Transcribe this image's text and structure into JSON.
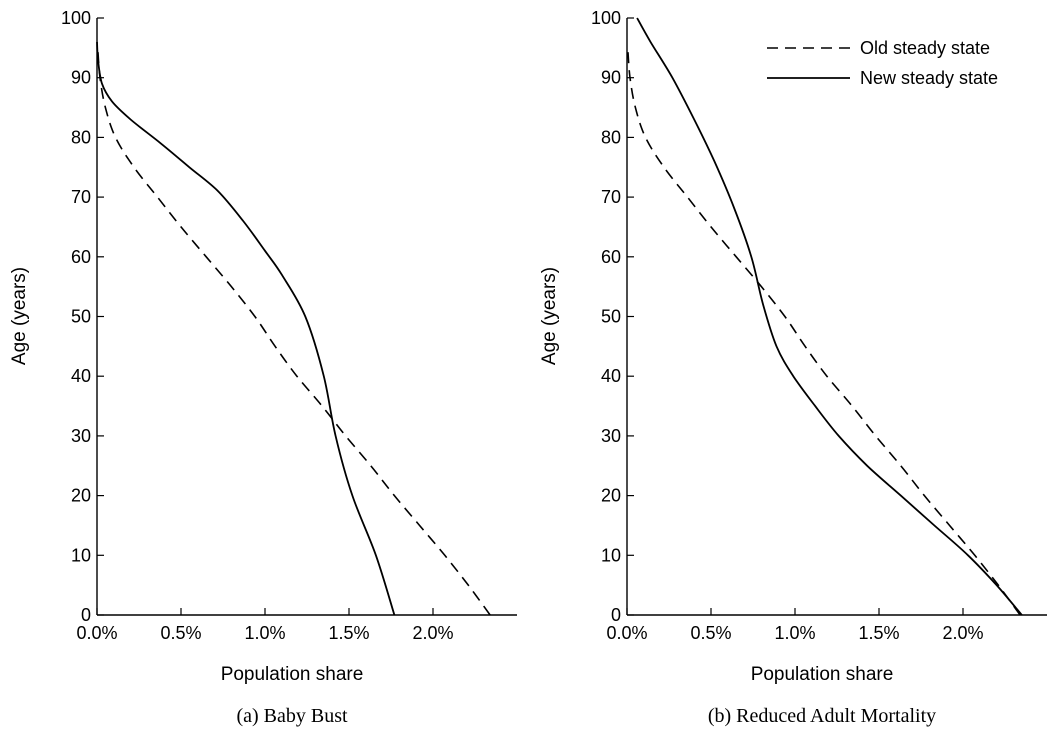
{
  "chart_data": [
    {
      "type": "line",
      "caption": "(a) Baby Bust",
      "xlabel": "Population share",
      "ylabel": "Age (years)",
      "xlim": [
        0,
        2.5
      ],
      "ylim": [
        0,
        100
      ],
      "xticks": [
        0,
        0.5,
        1.0,
        1.5,
        2.0
      ],
      "xtick_labels": [
        "0.0%",
        "0.5%",
        "1.0%",
        "1.5%",
        "2.0%"
      ],
      "yticks": [
        0,
        10,
        20,
        30,
        40,
        50,
        60,
        70,
        80,
        90,
        100
      ],
      "ytick_labels": [
        "0",
        "10",
        "20",
        "30",
        "40",
        "50",
        "60",
        "70",
        "80",
        "90",
        "100"
      ],
      "grid": false,
      "legend": false,
      "series": [
        {
          "name": "Old steady state",
          "style": "dashed",
          "points": [
            [
              2.34,
              0
            ],
            [
              2.21,
              5
            ],
            [
              2.07,
              10
            ],
            [
              1.92,
              15
            ],
            [
              1.77,
              20
            ],
            [
              1.63,
              25
            ],
            [
              1.48,
              30
            ],
            [
              1.34,
              35
            ],
            [
              1.19,
              40
            ],
            [
              1.06,
              45
            ],
            [
              0.94,
              50
            ],
            [
              0.8,
              55
            ],
            [
              0.65,
              60
            ],
            [
              0.5,
              65
            ],
            [
              0.36,
              70
            ],
            [
              0.22,
              75
            ],
            [
              0.11,
              80
            ],
            [
              0.05,
              85
            ],
            [
              0.018,
              90
            ],
            [
              0.004,
              95
            ]
          ]
        },
        {
          "name": "New steady state",
          "style": "solid",
          "points": [
            [
              1.77,
              0
            ],
            [
              1.66,
              10
            ],
            [
              1.52,
              20
            ],
            [
              1.42,
              30
            ],
            [
              1.35,
              40
            ],
            [
              1.24,
              50
            ],
            [
              1.1,
              57
            ],
            [
              1.0,
              61
            ],
            [
              0.87,
              66
            ],
            [
              0.72,
              71
            ],
            [
              0.55,
              75
            ],
            [
              0.38,
              79
            ],
            [
              0.2,
              83
            ],
            [
              0.09,
              86
            ],
            [
              0.03,
              89
            ],
            [
              0.006,
              93
            ],
            [
              0.0,
              96
            ]
          ]
        }
      ]
    },
    {
      "type": "line",
      "caption": "(b) Reduced Adult Mortality",
      "xlabel": "Population share",
      "ylabel": "Age (years)",
      "xlim": [
        0,
        2.5
      ],
      "ylim": [
        0,
        100
      ],
      "xticks": [
        0,
        0.5,
        1.0,
        1.5,
        2.0
      ],
      "xtick_labels": [
        "0.0%",
        "0.5%",
        "1.0%",
        "1.5%",
        "2.0%"
      ],
      "yticks": [
        0,
        10,
        20,
        30,
        40,
        50,
        60,
        70,
        80,
        90,
        100
      ],
      "ytick_labels": [
        "0",
        "10",
        "20",
        "30",
        "40",
        "50",
        "60",
        "70",
        "80",
        "90",
        "100"
      ],
      "grid": false,
      "legend": "top-right",
      "series": [
        {
          "name": "Old steady state",
          "style": "dashed",
          "points": [
            [
              2.34,
              0
            ],
            [
              2.21,
              5
            ],
            [
              2.07,
              10
            ],
            [
              1.92,
              15
            ],
            [
              1.77,
              20
            ],
            [
              1.63,
              25
            ],
            [
              1.48,
              30
            ],
            [
              1.34,
              35
            ],
            [
              1.19,
              40
            ],
            [
              1.06,
              45
            ],
            [
              0.94,
              50
            ],
            [
              0.8,
              55
            ],
            [
              0.65,
              60
            ],
            [
              0.5,
              65
            ],
            [
              0.36,
              70
            ],
            [
              0.22,
              75
            ],
            [
              0.11,
              80
            ],
            [
              0.05,
              85
            ],
            [
              0.018,
              90
            ],
            [
              0.004,
              95
            ]
          ]
        },
        {
          "name": "New steady state",
          "style": "solid",
          "points": [
            [
              2.35,
              0
            ],
            [
              2.2,
              5
            ],
            [
              2.03,
              10
            ],
            [
              1.83,
              15
            ],
            [
              1.63,
              20
            ],
            [
              1.43,
              25
            ],
            [
              1.26,
              30
            ],
            [
              1.12,
              35
            ],
            [
              0.99,
              40
            ],
            [
              0.89,
              45
            ],
            [
              0.81,
              52
            ],
            [
              0.74,
              60
            ],
            [
              0.64,
              68
            ],
            [
              0.52,
              76
            ],
            [
              0.4,
              83
            ],
            [
              0.27,
              90
            ],
            [
              0.14,
              96
            ],
            [
              0.06,
              100
            ]
          ]
        }
      ]
    }
  ]
}
